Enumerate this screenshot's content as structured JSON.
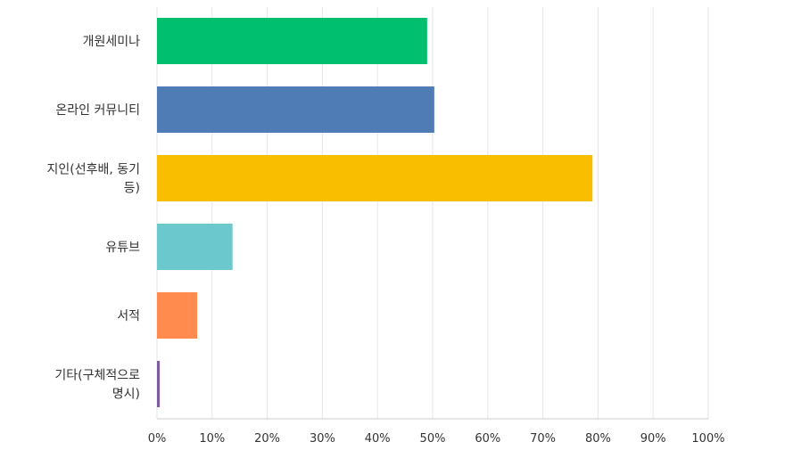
{
  "chart_data": {
    "type": "bar",
    "orientation": "horizontal",
    "categories": [
      [
        "개원세미나"
      ],
      [
        "온라인 커뮤니티"
      ],
      [
        "지인(선후배, 동기",
        "등)"
      ],
      [
        "유튜브"
      ],
      [
        "서적"
      ],
      [
        "기타(구체적으로",
        "명시)"
      ]
    ],
    "values": [
      49,
      50.3,
      79,
      13.7,
      7.3,
      0.5
    ],
    "colors": [
      "#00bf6f",
      "#507cb6",
      "#f9be00",
      "#6bc8cd",
      "#ff8b4f",
      "#7f5ca0"
    ],
    "xlim": [
      0,
      100
    ],
    "x_ticks": [
      "0%",
      "10%",
      "20%",
      "30%",
      "40%",
      "50%",
      "60%",
      "70%",
      "80%",
      "90%",
      "100%"
    ],
    "grid": true,
    "legend": "none",
    "title": "",
    "xlabel": "",
    "ylabel": ""
  }
}
